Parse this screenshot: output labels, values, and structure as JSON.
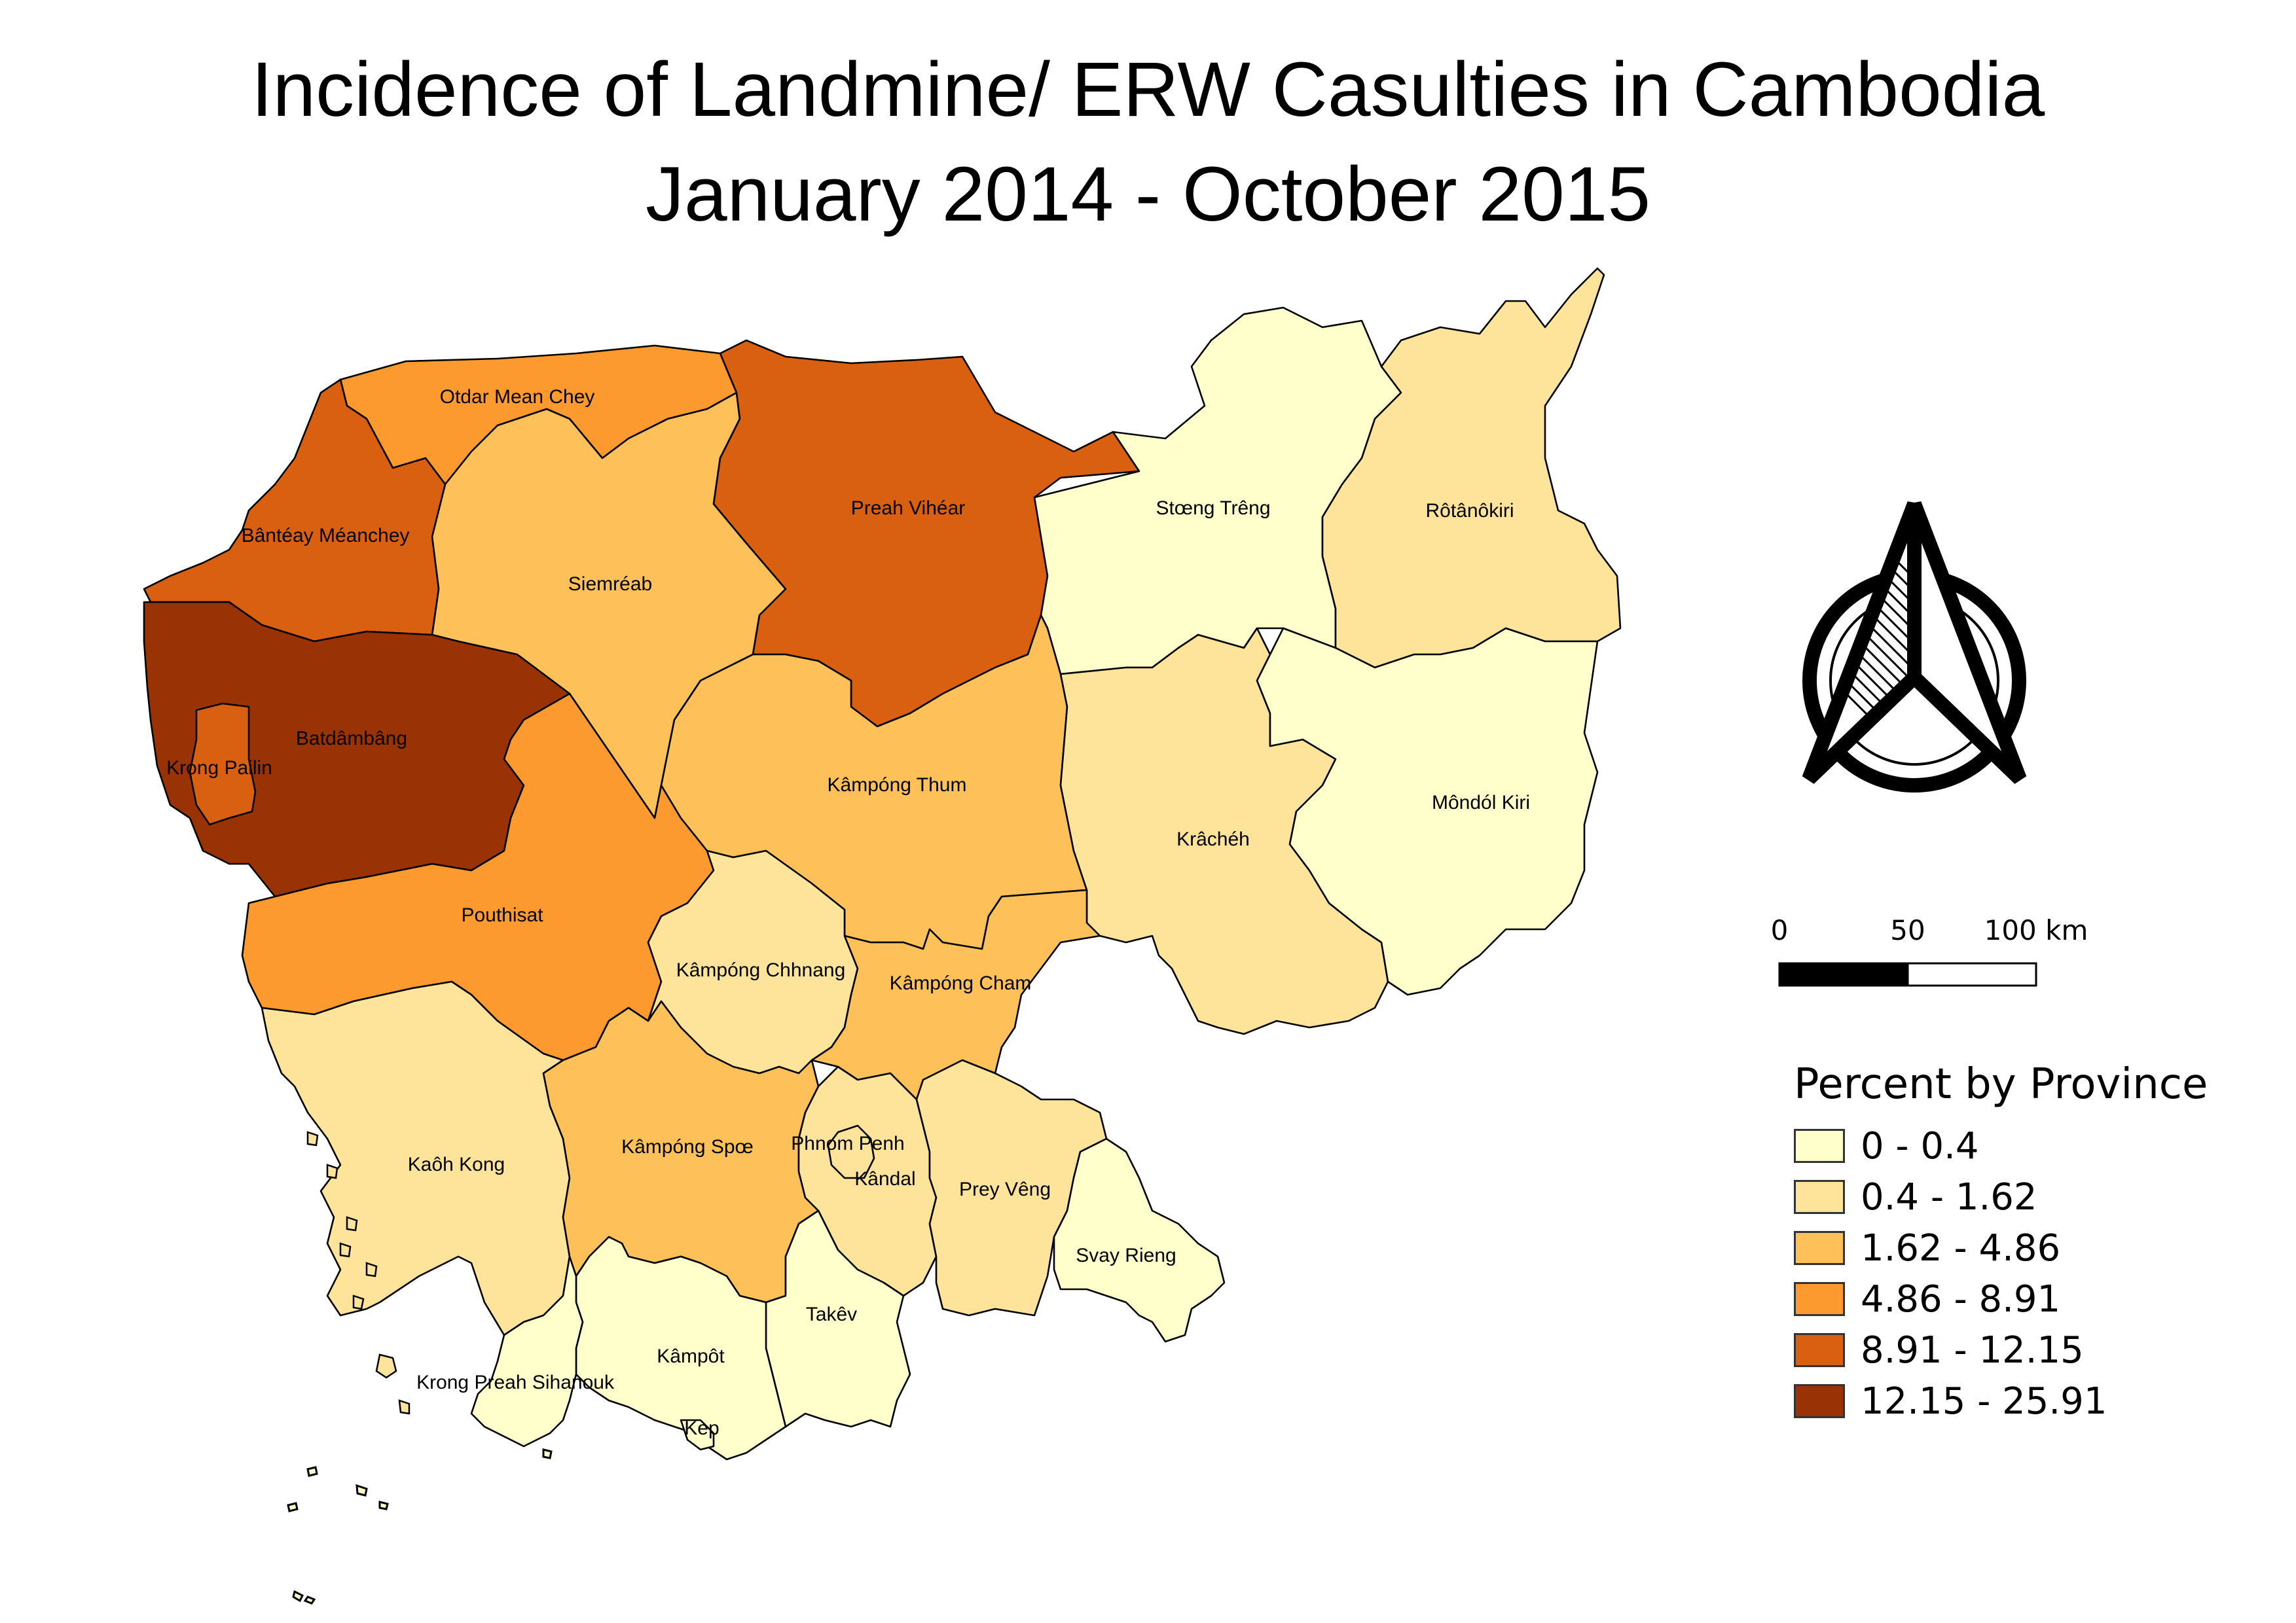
{
  "title": {
    "line1": "Incidence of Landmine/ ERW Casulties in Cambodia",
    "line2": "January 2014 - October 2015"
  },
  "legend": {
    "title": "Percent by Province",
    "classes": [
      {
        "label": "0 - 0.4",
        "color": "#ffffcc"
      },
      {
        "label": "0.4 - 1.62",
        "color": "#fee39a"
      },
      {
        "label": "1.62 - 4.86",
        "color": "#fec15a"
      },
      {
        "label": "4.86 - 8.91",
        "color": "#fd9a2f"
      },
      {
        "label": "8.91 - 12.15",
        "color": "#d95f11"
      },
      {
        "label": "12.15 - 25.91",
        "color": "#993306"
      }
    ]
  },
  "scale_bar": {
    "labels": [
      "0",
      "50",
      "100 km"
    ]
  },
  "north_arrow": {
    "icon": "north-arrow-icon"
  },
  "provinces": [
    {
      "name": "Otdar Mean Chey",
      "class": 3
    },
    {
      "name": "Bântéay Méanchey",
      "class": 4
    },
    {
      "name": "Siemréab",
      "class": 2
    },
    {
      "name": "Preah Vihéar",
      "class": 4
    },
    {
      "name": "Stœng Trêng",
      "class": 0
    },
    {
      "name": "Rôtânôkiri",
      "class": 1
    },
    {
      "name": "Batdâmbâng",
      "class": 5
    },
    {
      "name": "Krong Pailin",
      "class": 4
    },
    {
      "name": "Kâmpóng Thum",
      "class": 2
    },
    {
      "name": "Krâchéh",
      "class": 1
    },
    {
      "name": "Môndól Kiri",
      "class": 0
    },
    {
      "name": "Pouthisat",
      "class": 3
    },
    {
      "name": "Kâmpóng Chhnang",
      "class": 1
    },
    {
      "name": "Kâmpóng Cham",
      "class": 2
    },
    {
      "name": "Kaôh Kong",
      "class": 1
    },
    {
      "name": "Kâmpóng Spœ",
      "class": 2
    },
    {
      "name": "Phnom Penh",
      "class": 1
    },
    {
      "name": "Kândal",
      "class": 1
    },
    {
      "name": "Prey Vêng",
      "class": 1
    },
    {
      "name": "Svay Rieng",
      "class": 0
    },
    {
      "name": "Takêv",
      "class": 0
    },
    {
      "name": "Kâmpôt",
      "class": 0
    },
    {
      "name": "Krong Preah Sihanouk",
      "class": 0
    },
    {
      "name": "Kep",
      "class": 0
    }
  ]
}
